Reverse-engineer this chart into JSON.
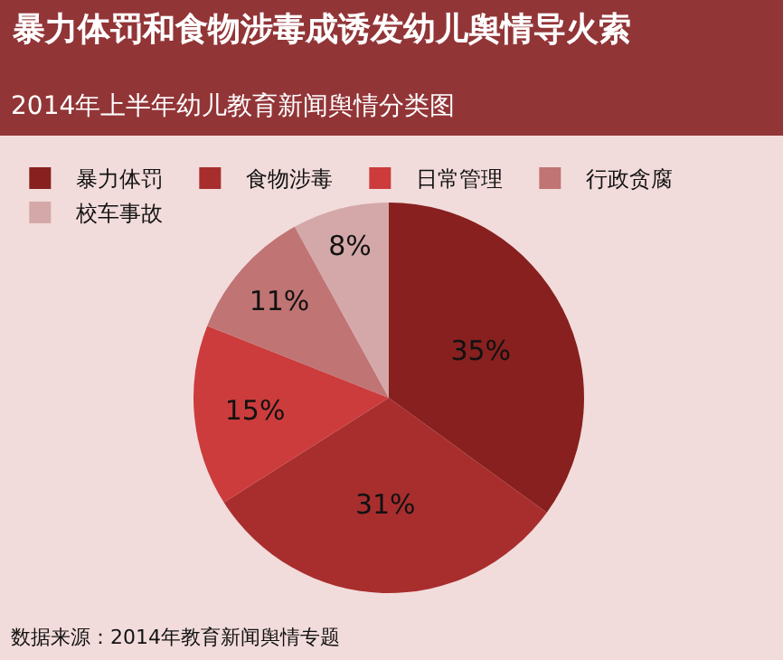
{
  "chart_data": {
    "type": "pie",
    "title": "暴力体罚和食物涉毒成诱发幼儿舆情导火索",
    "subtitle": "2014年上半年幼儿教育新闻舆情分类图",
    "categories": [
      "暴力体罚",
      "食物涉毒",
      "日常管理",
      "行政贪腐",
      "校车事故"
    ],
    "values": [
      35,
      31,
      15,
      11,
      8
    ],
    "colors": [
      "#87201f",
      "#a82e2e",
      "#cc3c3c",
      "#c07474",
      "#d4a8a8"
    ],
    "value_labels": [
      "35%",
      "31%",
      "15%",
      "11%",
      "8%"
    ],
    "legend": "top",
    "annotations": [
      "数据来源：2014年教育新闻舆情专题"
    ]
  }
}
